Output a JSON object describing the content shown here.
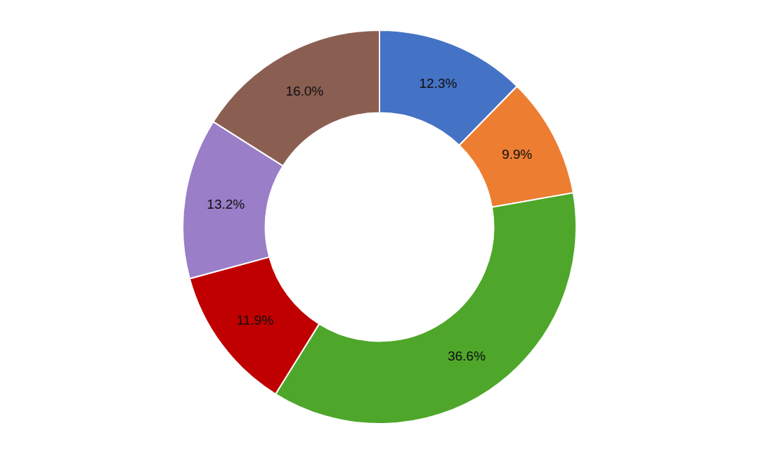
{
  "chart_data": {
    "type": "donut",
    "values": [
      12.3,
      9.9,
      36.6,
      11.9,
      13.2,
      16.0
    ],
    "value_labels": [
      "12.3%",
      "9.9%",
      "36.6%",
      "11.9%",
      "13.2%",
      "16.0%"
    ],
    "colors": [
      "#4472C4",
      "#ED7D31",
      "#4EA72A",
      "#C00000",
      "#9B7EC8",
      "#8B5E52"
    ],
    "data_labels": true
  }
}
